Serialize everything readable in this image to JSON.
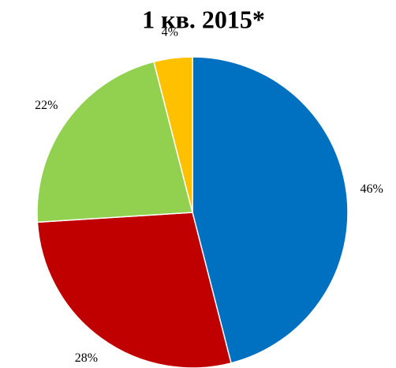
{
  "chart_data": {
    "type": "pie",
    "title": "1 кв. 2015*",
    "values": [
      46,
      28,
      22,
      4
    ],
    "value_labels": [
      "46%",
      "28%",
      "22%",
      "4%"
    ],
    "colors": [
      "#0070c0",
      "#c00000",
      "#92d050",
      "#ffc000"
    ]
  }
}
